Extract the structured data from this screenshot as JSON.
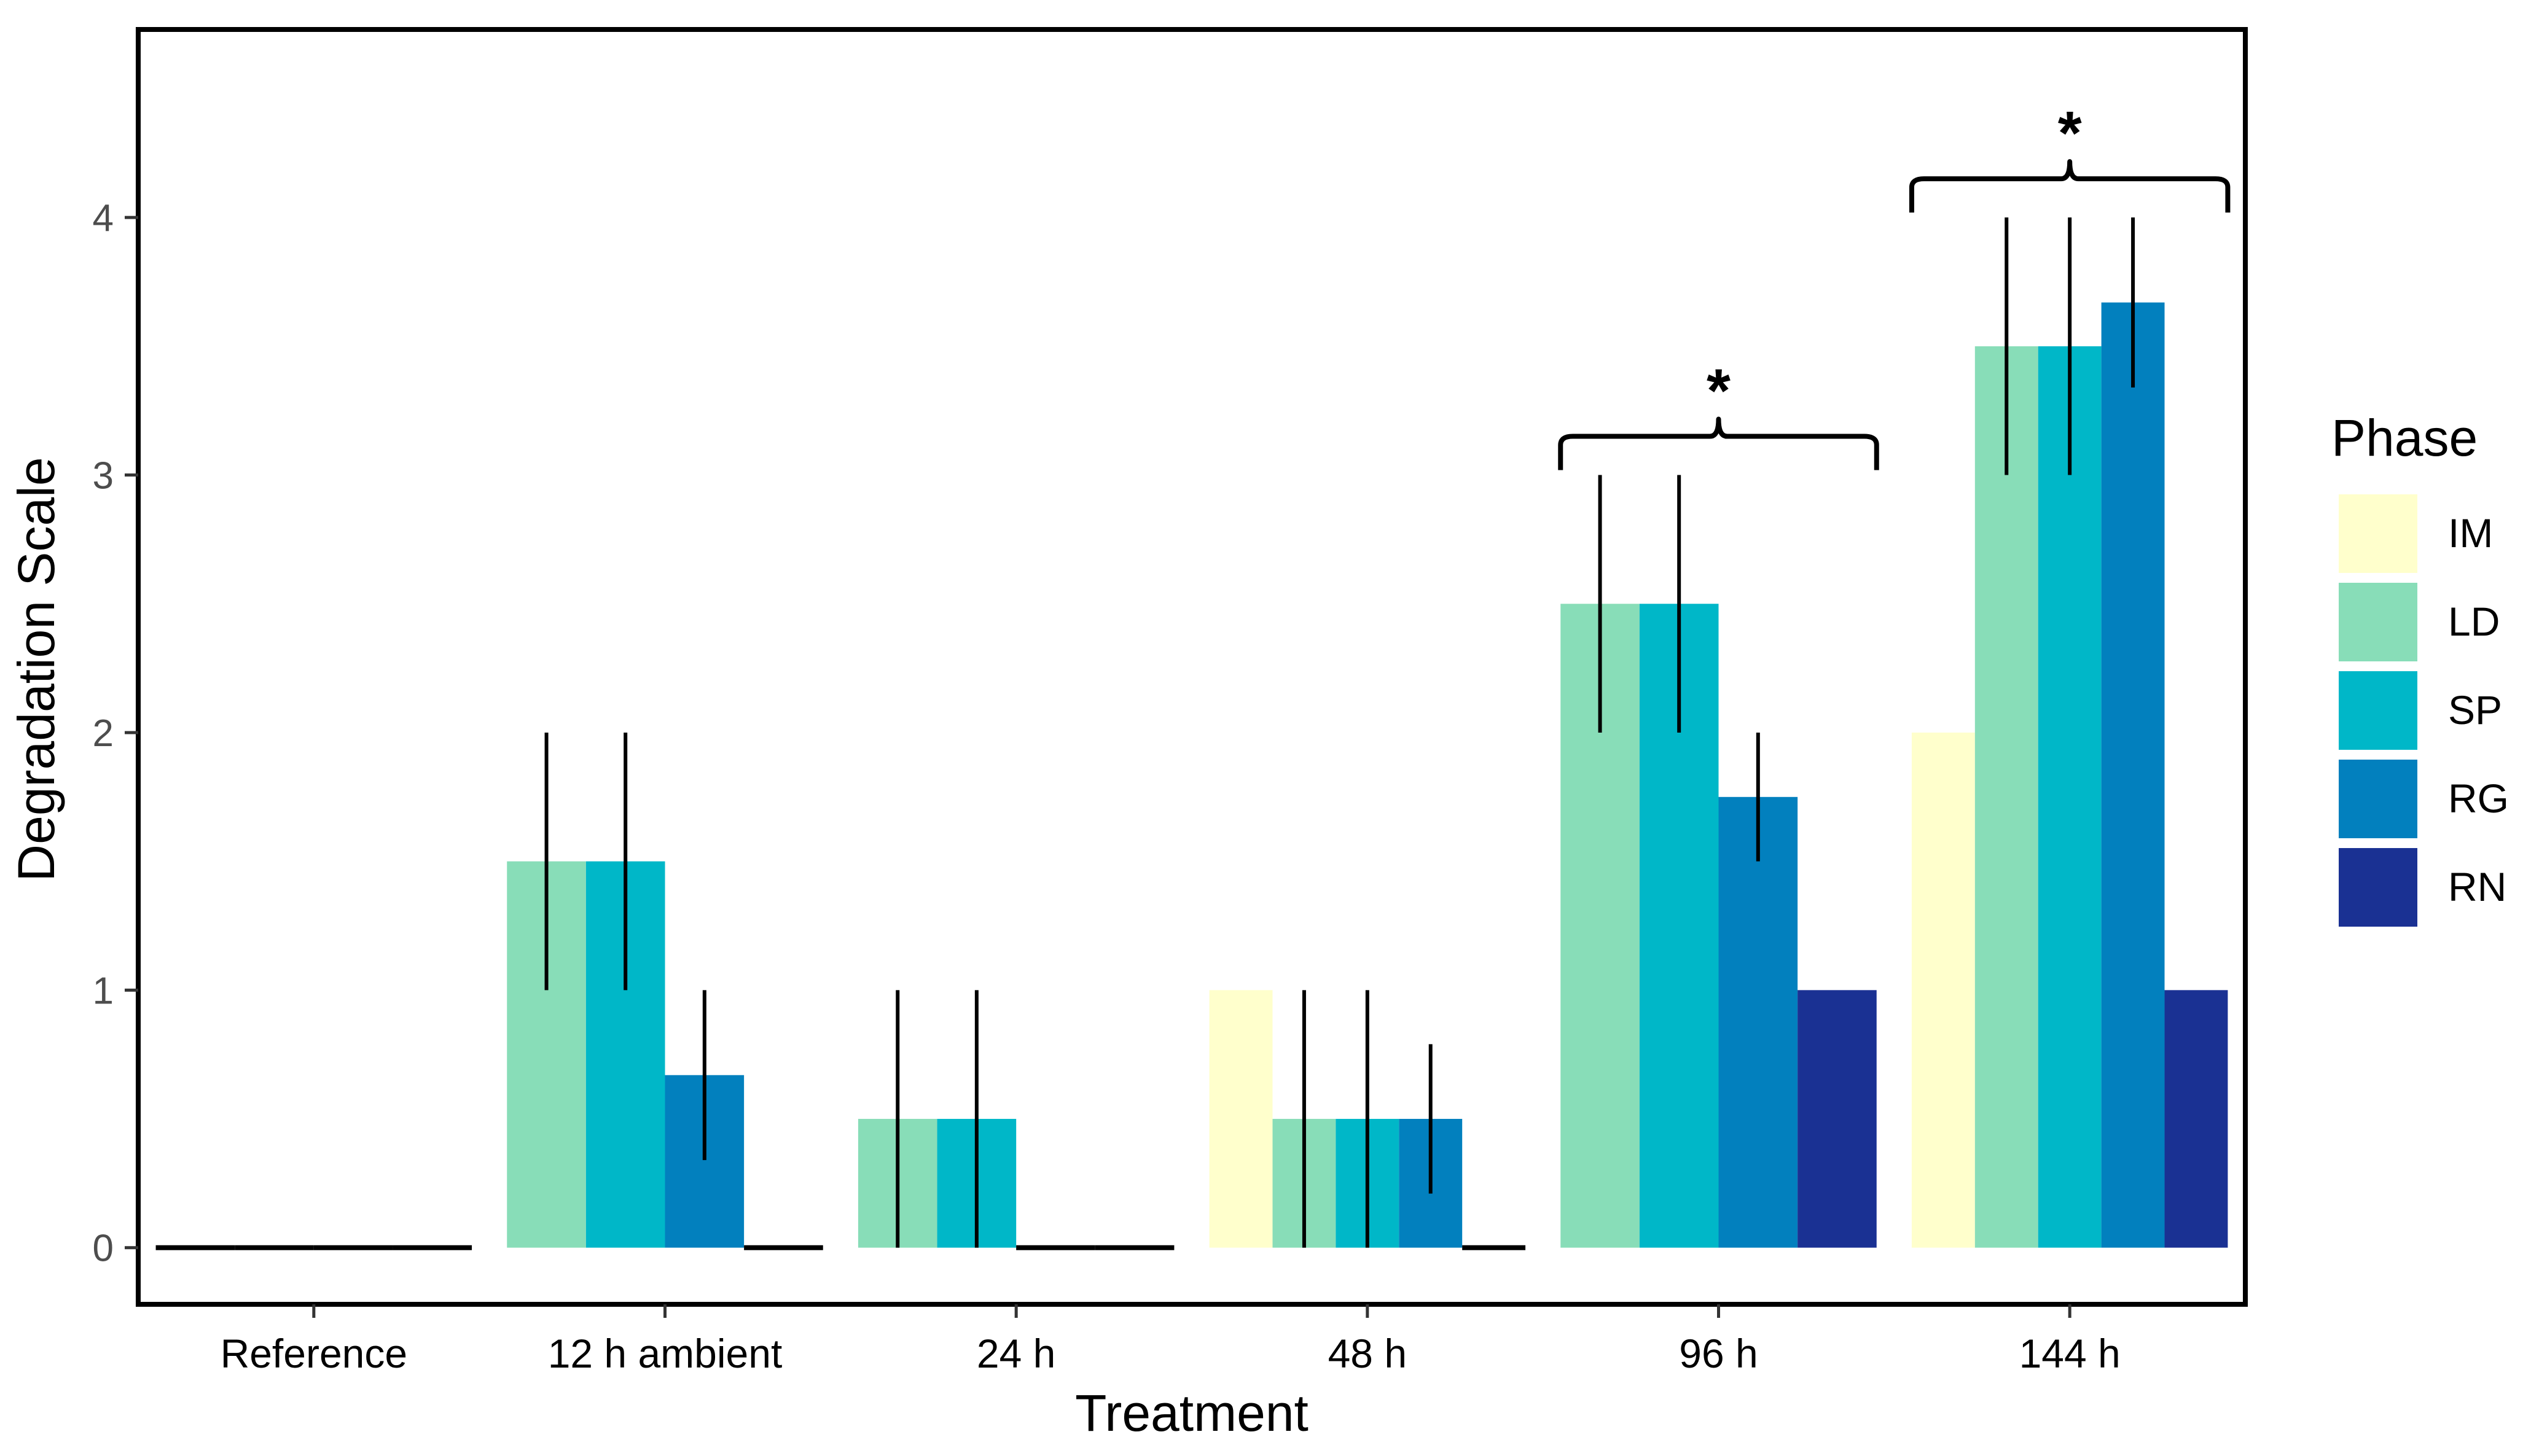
{
  "chart_data": {
    "type": "bar",
    "title": "",
    "xlabel": "Treatment",
    "ylabel": "Degradation Scale",
    "ylim": [
      -0.22,
      4.73
    ],
    "yticks": [
      0,
      1,
      2,
      3,
      4
    ],
    "grid": false,
    "categories": [
      "Reference",
      "12 h ambient",
      "24 h",
      "48 h",
      "96 h",
      "144 h"
    ],
    "legend": {
      "title": "Phase",
      "position": "right"
    },
    "series": [
      {
        "name": "IM",
        "color": "#FFFFCC",
        "bars": [
          {
            "category": "Reference",
            "value": 0
          },
          {
            "category": "48 h",
            "value": 1
          },
          {
            "category": "144 h",
            "value": 2
          }
        ]
      },
      {
        "name": "LD",
        "color": "#88DDB8",
        "bars": [
          {
            "category": "Reference",
            "value": 0
          },
          {
            "category": "12 h ambient",
            "value": 1.5,
            "err": [
              1,
              2
            ]
          },
          {
            "category": "24 h",
            "value": 0.5,
            "err": [
              0,
              1
            ]
          },
          {
            "category": "48 h",
            "value": 0.5,
            "err": [
              0,
              1
            ]
          },
          {
            "category": "96 h",
            "value": 2.5,
            "err": [
              2,
              3
            ]
          },
          {
            "category": "144 h",
            "value": 3.5,
            "err": [
              3,
              4
            ]
          }
        ]
      },
      {
        "name": "SP",
        "color": "#00B7C8",
        "bars": [
          {
            "category": "Reference",
            "value": 0
          },
          {
            "category": "12 h ambient",
            "value": 1.5,
            "err": [
              1,
              2
            ]
          },
          {
            "category": "24 h",
            "value": 0.5,
            "err": [
              0,
              1
            ]
          },
          {
            "category": "48 h",
            "value": 0.5,
            "err": [
              0,
              1
            ]
          },
          {
            "category": "96 h",
            "value": 2.5,
            "err": [
              2,
              3
            ]
          },
          {
            "category": "144 h",
            "value": 3.5,
            "err": [
              3,
              4
            ]
          }
        ]
      },
      {
        "name": "RG",
        "color": "#0280BE",
        "bars": [
          {
            "category": "Reference",
            "value": 0
          },
          {
            "category": "12 h ambient",
            "value": 0.67,
            "err": [
              0.34,
              1
            ]
          },
          {
            "category": "24 h",
            "value": 0
          },
          {
            "category": "48 h",
            "value": 0.5,
            "err": [
              0.21,
              0.79
            ]
          },
          {
            "category": "96 h",
            "value": 1.75,
            "err": [
              1.5,
              2
            ]
          },
          {
            "category": "144 h",
            "value": 3.67,
            "err": [
              3.34,
              4
            ]
          }
        ]
      },
      {
        "name": "RN",
        "color": "#1A3193",
        "bars": [
          {
            "category": "12 h ambient",
            "value": 0
          },
          {
            "category": "24 h",
            "value": 0
          },
          {
            "category": "48 h",
            "value": 0
          },
          {
            "category": "96 h",
            "value": 1
          },
          {
            "category": "144 h",
            "value": 1
          }
        ]
      }
    ],
    "annotations": [
      {
        "category": "96 h",
        "text": "*",
        "type": "significance-brace"
      },
      {
        "category": "144 h",
        "text": "*",
        "type": "significance-brace"
      }
    ]
  }
}
